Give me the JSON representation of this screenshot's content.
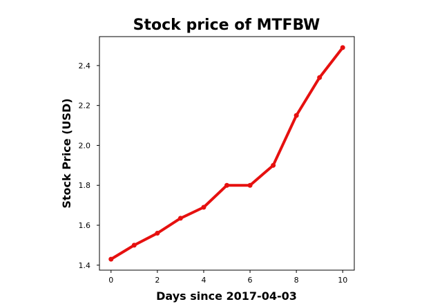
{
  "chart_data": {
    "type": "line",
    "title": "Stock price of MTFBW",
    "xlabel": "Days since 2017-04-03",
    "ylabel": "Stock Price (USD)",
    "x": [
      0,
      1,
      2,
      3,
      4,
      5,
      6,
      7,
      8,
      9,
      10
    ],
    "series": [
      {
        "values": [
          1.43,
          1.5,
          1.56,
          1.635,
          1.69,
          1.8,
          1.8,
          1.9,
          2.15,
          2.34,
          2.49
        ]
      }
    ],
    "xticks": [
      0,
      2,
      4,
      6,
      8,
      10
    ],
    "xtick_labels": [
      "0",
      "2",
      "4",
      "6",
      "8",
      "10"
    ],
    "yticks": [
      1.4,
      1.6,
      1.8,
      2.0,
      2.2,
      2.4
    ],
    "ytick_labels": [
      "1.4",
      "1.6",
      "1.8",
      "2.0",
      "2.2",
      "2.4"
    ],
    "xlim": [
      -0.5,
      10.5
    ],
    "ylim": [
      1.375,
      2.545
    ],
    "line_color": "#e6100f",
    "grid": false,
    "legend": false
  }
}
